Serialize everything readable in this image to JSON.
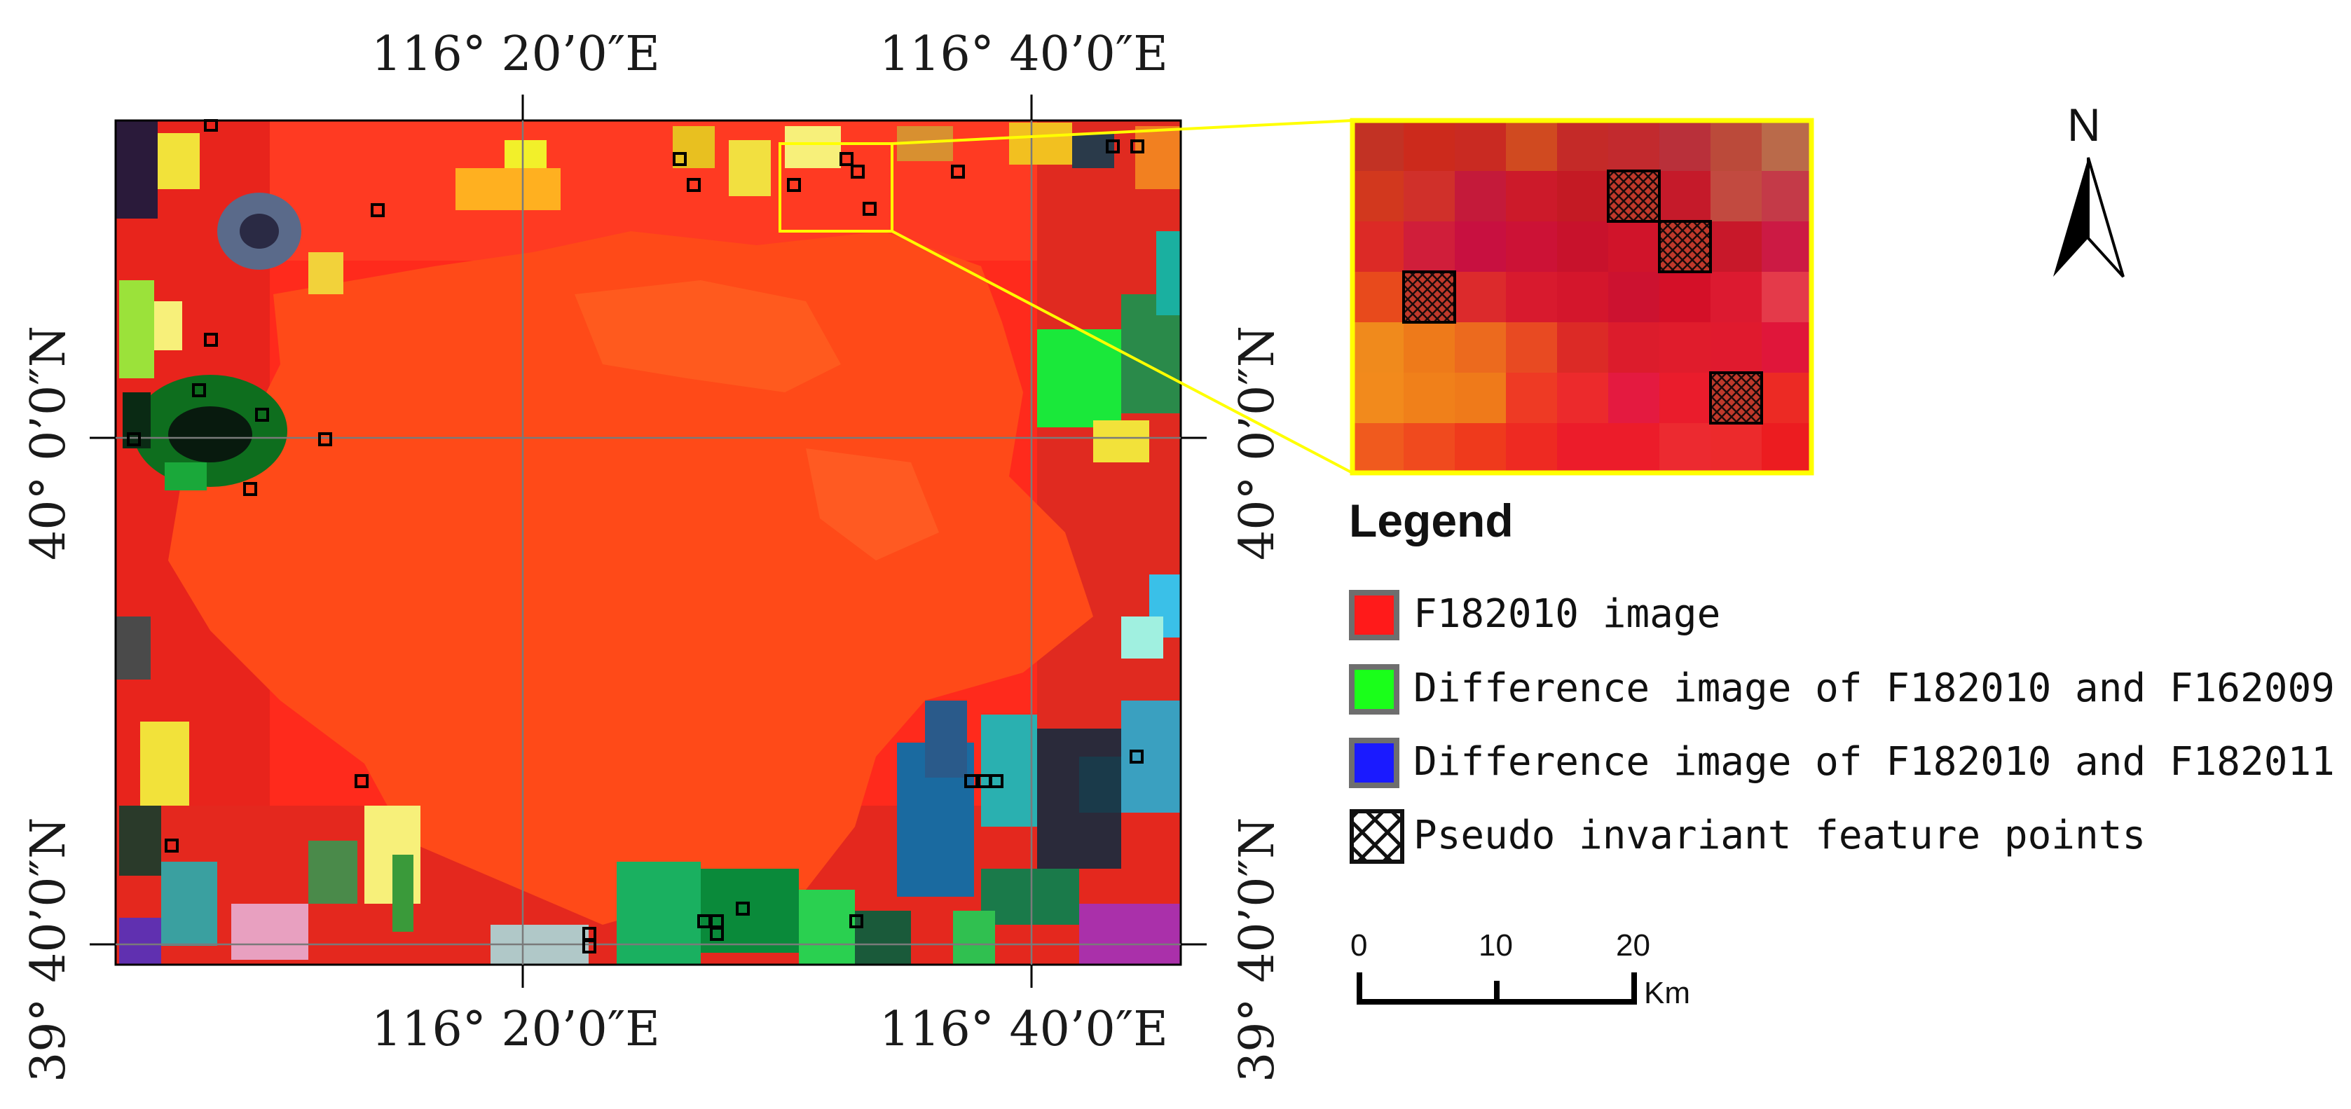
{
  "map": {
    "top_longitude_labels": [
      "116° 20’0″E",
      "116° 40’0″E"
    ],
    "bottom_longitude_labels": [
      "116° 20’0″E",
      "116° 40’0″E"
    ],
    "left_latitude_labels": [
      "40° 0’0″N",
      "39° 40’0″N"
    ],
    "right_latitude_labels": [
      "40° 0’0″N",
      "39° 40’0″N"
    ]
  },
  "legend": {
    "title": "Legend",
    "items": [
      {
        "label": "F182010 image",
        "color": "#ff1a1a",
        "pattern": "solid"
      },
      {
        "label": "Difference image of F182010 and F162009",
        "color": "#1aff1a",
        "pattern": "solid"
      },
      {
        "label": "Difference image of F182010 and F182011",
        "color": "#1a1aff",
        "pattern": "solid"
      },
      {
        "label": "Pseudo invariant feature points",
        "color": "#ffffff",
        "pattern": "crosshatch"
      }
    ]
  },
  "scale_bar": {
    "ticks": [
      "0",
      "10",
      "20"
    ],
    "unit": "Km"
  },
  "north_arrow": {
    "label": "N"
  },
  "colors": {
    "inset_border": "#ffff00",
    "background_red": "#ff3e17"
  }
}
